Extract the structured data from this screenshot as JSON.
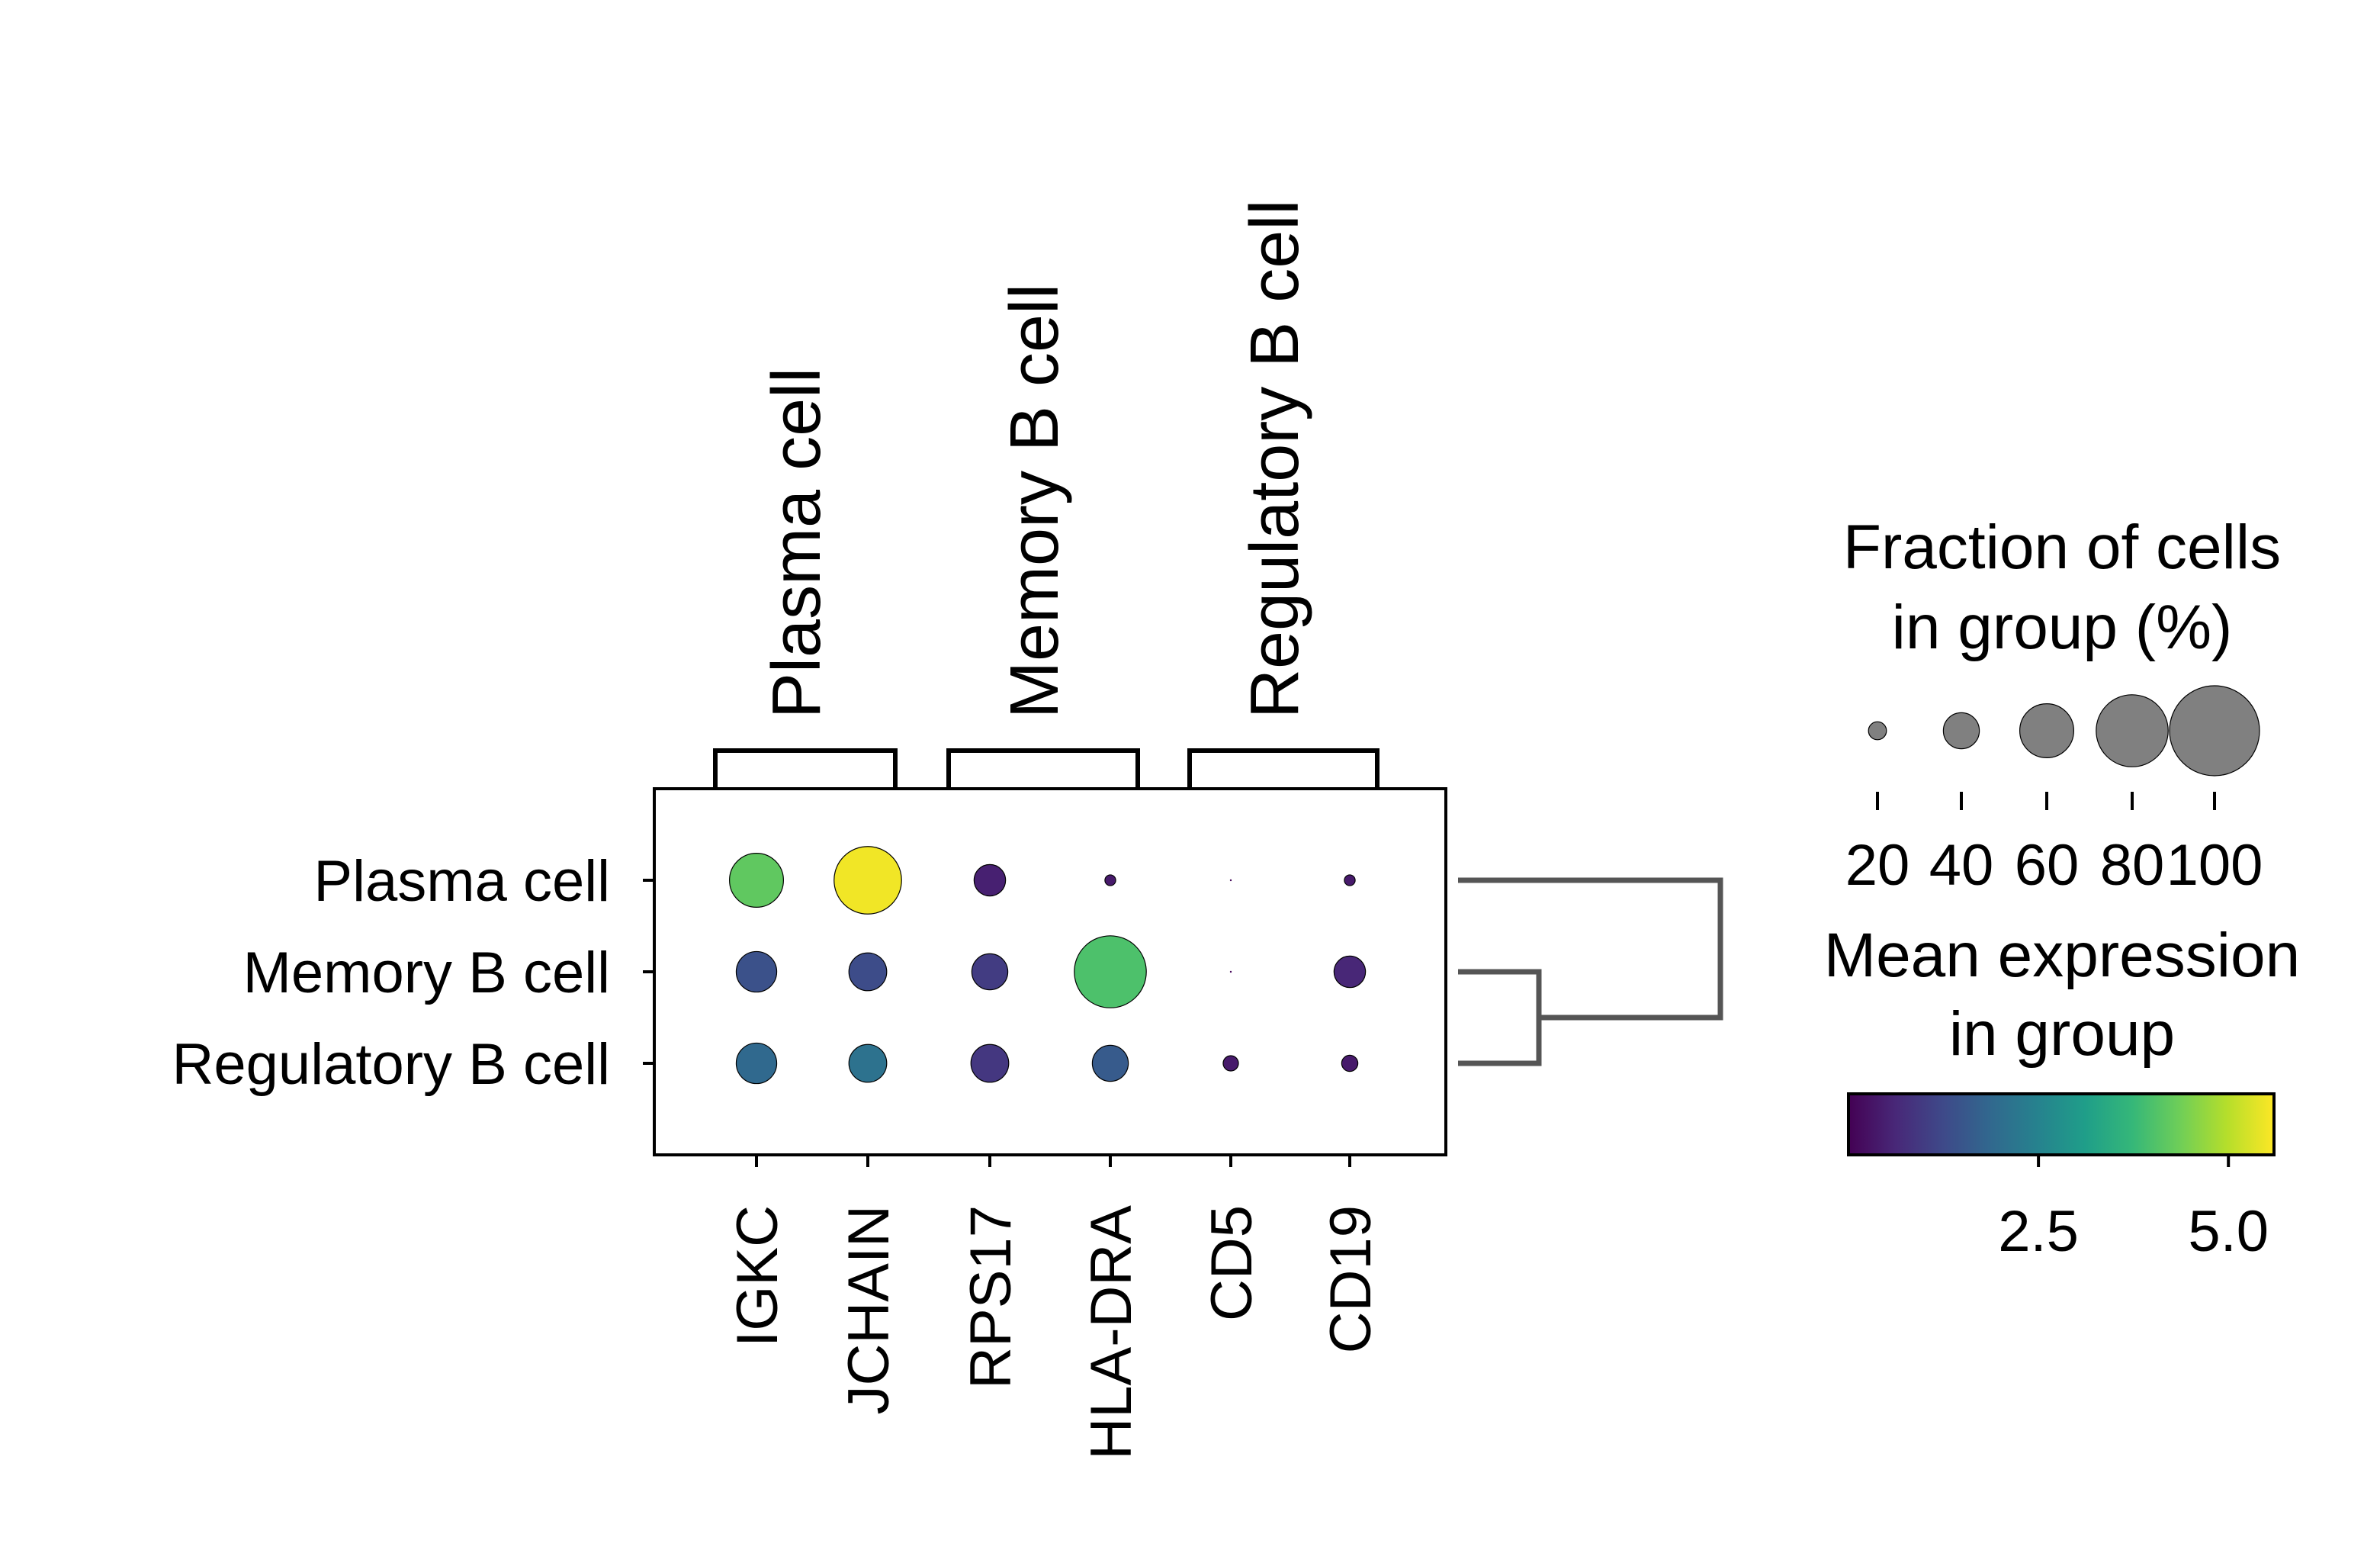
{
  "chart_data": {
    "type": "dotplot",
    "genes": [
      "IGKC",
      "JCHAIN",
      "RPS17",
      "HLA-DRA",
      "CD5",
      "CD19"
    ],
    "groups": [
      "Plasma cell",
      "Memory B cell",
      "Regulatory B cell"
    ],
    "gene_groups": [
      {
        "label": "Plasma cell",
        "genes": [
          "IGKC",
          "JCHAIN"
        ]
      },
      {
        "label": "Memory B cell",
        "genes": [
          "RPS17",
          "HLA-DRA"
        ]
      },
      {
        "label": "Regulatory B cell",
        "genes": [
          "CD5",
          "CD19"
        ]
      }
    ],
    "fraction_percent": [
      [
        60,
        75,
        35,
        12,
        1,
        12
      ],
      [
        45,
        42,
        40,
        80,
        1,
        35
      ],
      [
        45,
        42,
        42,
        40,
        17,
        18
      ]
    ],
    "mean_expression": [
      [
        4.2,
        5.5,
        0.5,
        0.4,
        0.1,
        0.4
      ],
      [
        1.4,
        1.3,
        1.0,
        4.0,
        0.1,
        0.6
      ],
      [
        1.9,
        2.1,
        0.9,
        1.6,
        0.4,
        0.4
      ]
    ],
    "dendrogram": "Memory B cell and Regulatory B cell join first; Plasma cell joins last",
    "size_legend": {
      "title_lines": [
        "Fraction of cells",
        "in group (%)"
      ],
      "ticks": [
        "20",
        "40",
        "60",
        "80",
        "100"
      ],
      "values": [
        20,
        40,
        60,
        80,
        100
      ]
    },
    "color_legend": {
      "title_lines": [
        "Mean expression",
        "in group"
      ],
      "colormap": "viridis",
      "range": [
        0,
        5.6
      ],
      "ticks": [
        "2.5",
        "5.0"
      ],
      "tick_values": [
        2.5,
        5.0
      ]
    },
    "colors": {
      "viridis": [
        "#440154",
        "#482878",
        "#3e4989",
        "#31688e",
        "#26828e",
        "#1f9e89",
        "#35b779",
        "#6ece58",
        "#b5de2b",
        "#fde725"
      ],
      "dendrogram": "#555555",
      "legend_dot": "#808080",
      "axes": "#000000"
    }
  }
}
